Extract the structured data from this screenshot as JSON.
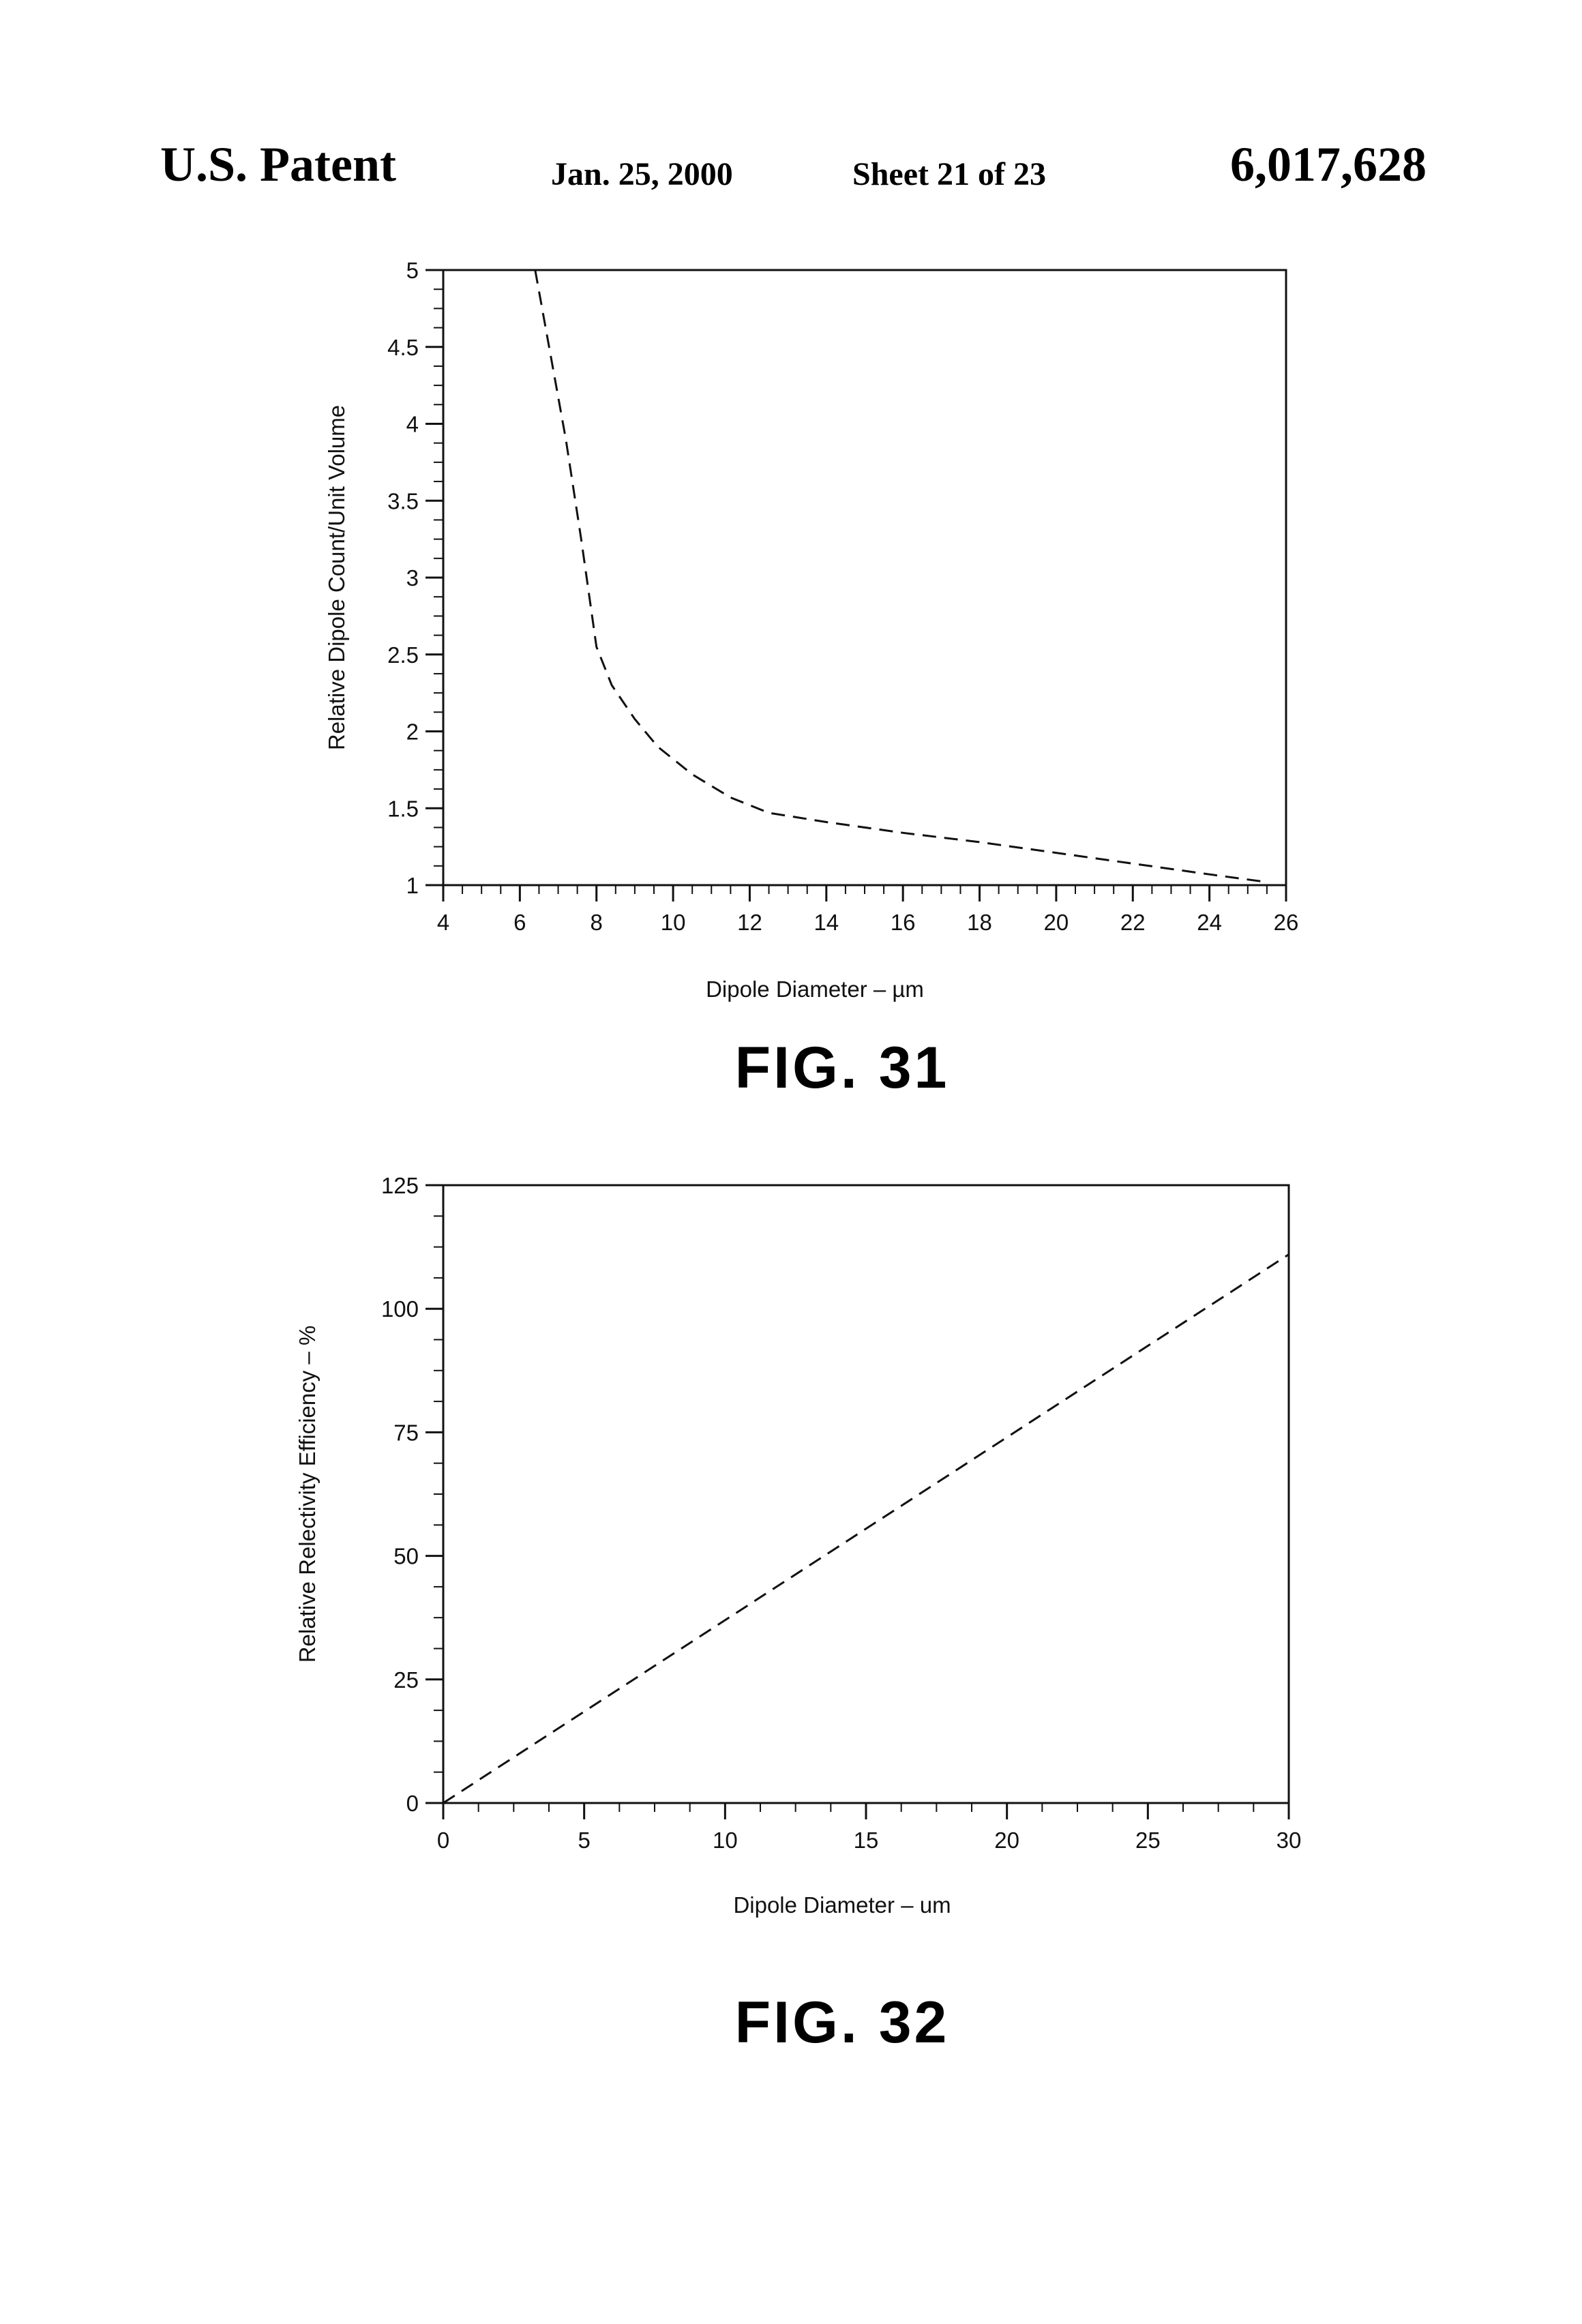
{
  "header": {
    "title": "U.S. Patent",
    "date": "Jan. 25, 2000",
    "sheet": "Sheet 21 of 23",
    "patent_number": "6,017,628"
  },
  "chart_data": [
    {
      "type": "line",
      "figure_label": "FIG. 31",
      "title": "",
      "xlabel": "Dipole Diameter – µm",
      "ylabel": "Relative Dipole Count/Unit Volume",
      "xlim": [
        4,
        26
      ],
      "ylim": [
        1,
        5
      ],
      "x_ticks": [
        "4",
        "6",
        "8",
        "10",
        "12",
        "14",
        "16",
        "18",
        "20",
        "22",
        "24",
        "26"
      ],
      "y_ticks": [
        "1",
        "1.5",
        "2",
        "2.5",
        "3",
        "3.5",
        "4",
        "4.5",
        "5"
      ],
      "line_style": "dashed",
      "grid": false,
      "series": [
        {
          "x": [
            6.4,
            6.8,
            7.2,
            7.6,
            8.0,
            8.4,
            9.0,
            9.6,
            10.5,
            11.5,
            12.5,
            14.0,
            16.0,
            18.0,
            20.0,
            22.0,
            24.0,
            25.5
          ],
          "y": [
            5.0,
            4.45,
            3.9,
            3.25,
            2.55,
            2.3,
            2.08,
            1.9,
            1.72,
            1.57,
            1.47,
            1.41,
            1.34,
            1.28,
            1.21,
            1.14,
            1.07,
            1.02
          ]
        }
      ]
    },
    {
      "type": "line",
      "figure_label": "FIG. 32",
      "title": "",
      "xlabel": "Dipole Diameter – um",
      "ylabel": "Relative Relectivity Efficiency – %",
      "xlim": [
        0,
        30
      ],
      "ylim": [
        0,
        125
      ],
      "x_ticks": [
        "0",
        "5",
        "10",
        "15",
        "20",
        "25",
        "30"
      ],
      "y_ticks": [
        "0",
        "25",
        "50",
        "75",
        "100",
        "125"
      ],
      "line_style": "dashed",
      "grid": false,
      "series": [
        {
          "x": [
            0,
            30
          ],
          "y": [
            0,
            111
          ]
        }
      ]
    }
  ]
}
